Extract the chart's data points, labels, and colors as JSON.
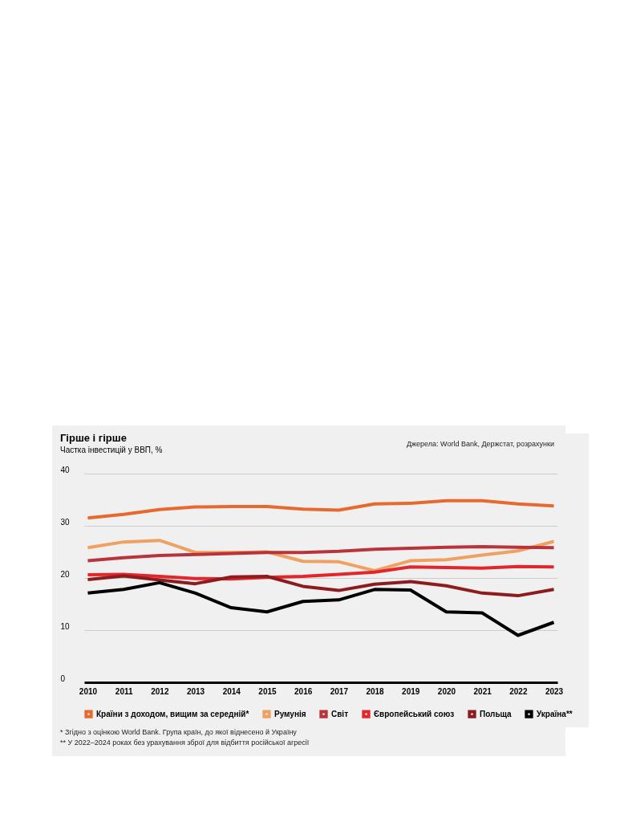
{
  "chart_data": {
    "type": "line",
    "title": "Гірше і гірше",
    "subtitle": "Частка інвестицій у ВВП, %",
    "categories": [
      "2010",
      "2011",
      "2012",
      "2013",
      "2014",
      "2015",
      "2016",
      "2017",
      "2018",
      "2019",
      "2020",
      "2021",
      "2022",
      "2023"
    ],
    "series": [
      {
        "name": "Країни з доходом, вищим за середній*",
        "color": "#e8692e",
        "values": [
          31.5,
          32.2,
          33.1,
          33.6,
          33.7,
          33.7,
          33.2,
          33.0,
          34.2,
          34.3,
          34.8,
          34.8,
          34.2,
          33.8
        ]
      },
      {
        "name": "Румунія",
        "color": "#f0a060",
        "values": [
          25.8,
          26.9,
          27.2,
          24.9,
          24.9,
          25.0,
          23.2,
          23.1,
          21.4,
          23.3,
          23.5,
          24.4,
          25.2,
          27.0
        ]
      },
      {
        "name": "Світ",
        "color": "#b8343a",
        "values": [
          23.3,
          23.9,
          24.3,
          24.5,
          24.7,
          24.9,
          24.9,
          25.1,
          25.5,
          25.7,
          25.9,
          26.0,
          25.9,
          25.8
        ]
      },
      {
        "name": "Європейський союз",
        "color": "#e2262b",
        "values": [
          20.6,
          20.7,
          20.3,
          19.9,
          19.8,
          20.1,
          20.3,
          20.7,
          21.1,
          22.1,
          22.0,
          21.9,
          22.2,
          22.1
        ]
      },
      {
        "name": "Польща",
        "color": "#8c1c1e",
        "values": [
          19.7,
          20.4,
          19.6,
          18.9,
          20.2,
          20.3,
          18.4,
          17.6,
          18.8,
          19.3,
          18.5,
          17.1,
          16.6,
          17.8
        ]
      },
      {
        "name": "Україна**",
        "color": "#000000",
        "values": [
          17.1,
          17.8,
          19.1,
          17.1,
          14.3,
          13.5,
          15.5,
          15.8,
          17.8,
          17.7,
          13.5,
          13.3,
          9.0,
          11.5
        ]
      }
    ],
    "ylim": [
      0,
      40
    ],
    "yticks": [
      0,
      10,
      20,
      30,
      40
    ],
    "grid": "y",
    "legend": "bottom",
    "line_style": "solid",
    "annotations": [
      "Джерела: World Bank, Держстат, розрахунки",
      "* Згідно з оцінкою World Bank. Група країн, до якої віднесено й Україну",
      "** У 2022–2024 роках без урахування зброї для відбиття російської агресії"
    ]
  }
}
